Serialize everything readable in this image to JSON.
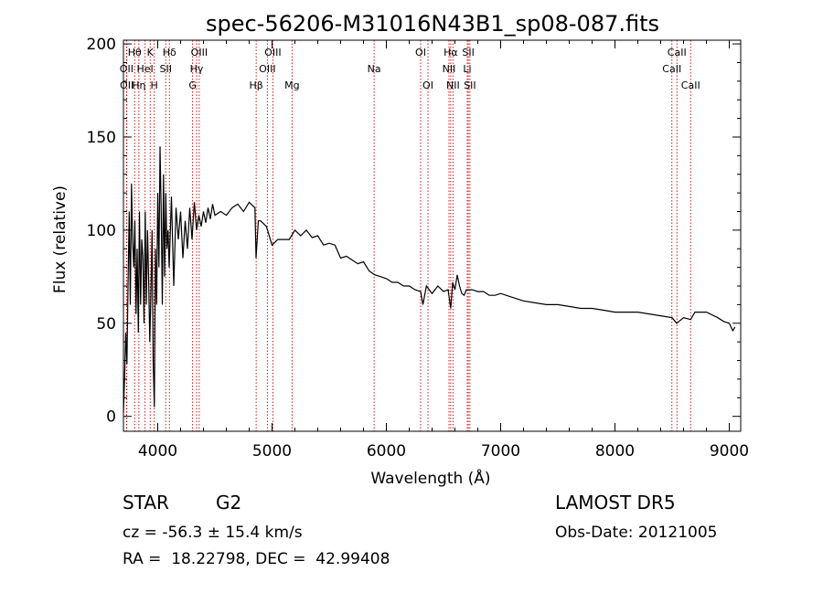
{
  "chart_data": {
    "type": "line",
    "title": "spec-56206-M31016N43B1_sp08-087.fits",
    "xlabel": "Wavelength (Å)",
    "ylabel": "Flux (relative)",
    "xlim": [
      3700,
      9100
    ],
    "ylim": [
      -8,
      202
    ],
    "xticks": [
      4000,
      5000,
      6000,
      7000,
      8000,
      9000
    ],
    "yticks": [
      0,
      50,
      100,
      150,
      200
    ],
    "grid": false,
    "line_color": "#000000",
    "marker_color": "#cc0000",
    "series": [
      {
        "x": [
          3700,
          3710,
          3720,
          3730,
          3740,
          3750,
          3760,
          3770,
          3780,
          3790,
          3800,
          3810,
          3820,
          3830,
          3840,
          3850,
          3860,
          3870,
          3880,
          3890,
          3900,
          3910,
          3920,
          3930,
          3940,
          3950,
          3960,
          3970,
          3980,
          3990,
          4000,
          4010,
          4020,
          4030,
          4040,
          4050,
          4060,
          4070,
          4080,
          4090,
          4100,
          4120,
          4140,
          4160,
          4180,
          4200,
          4220,
          4240,
          4260,
          4280,
          4300,
          4320,
          4340,
          4360,
          4380,
          4400,
          4420,
          4440,
          4460,
          4480,
          4500,
          4550,
          4600,
          4650,
          4700,
          4750,
          4800,
          4850,
          4860,
          4880,
          4900,
          4950,
          5000,
          5050,
          5100,
          5150,
          5200,
          5250,
          5300,
          5350,
          5400,
          5450,
          5500,
          5550,
          5600,
          5650,
          5700,
          5750,
          5800,
          5850,
          5900,
          5950,
          6000,
          6050,
          6100,
          6150,
          6200,
          6250,
          6300,
          6320,
          6350,
          6400,
          6450,
          6500,
          6540,
          6563,
          6580,
          6600,
          6620,
          6640,
          6660,
          6680,
          6700,
          6750,
          6800,
          6850,
          6900,
          6950,
          7000,
          7100,
          7200,
          7300,
          7400,
          7500,
          7600,
          7700,
          7800,
          7900,
          8000,
          8100,
          8200,
          8300,
          8400,
          8500,
          8540,
          8600,
          8662,
          8700,
          8800,
          8900,
          8950,
          9000,
          9030,
          9050
        ],
        "values": [
          2,
          22,
          45,
          28,
          70,
          110,
          60,
          125,
          95,
          80,
          105,
          55,
          90,
          45,
          110,
          60,
          95,
          85,
          50,
          110,
          60,
          100,
          75,
          40,
          65,
          100,
          30,
          5,
          90,
          60,
          120,
          80,
          145,
          110,
          60,
          130,
          75,
          120,
          90,
          100,
          80,
          118,
          70,
          112,
          95,
          110,
          85,
          105,
          90,
          112,
          95,
          115,
          100,
          108,
          102,
          110,
          104,
          112,
          106,
          114,
          108,
          110,
          108,
          112,
          114,
          110,
          115,
          112,
          85,
          105,
          105,
          102,
          92,
          95,
          95,
          95,
          100,
          97,
          100,
          96,
          97,
          92,
          93,
          92,
          85,
          86,
          84,
          82,
          83,
          78,
          76,
          75,
          74,
          72,
          72,
          70,
          70,
          68,
          67,
          60,
          70,
          66,
          70,
          67,
          68,
          58,
          72,
          68,
          76,
          70,
          66,
          65,
          68,
          68,
          67,
          67,
          65,
          65,
          66,
          64,
          62,
          61,
          60,
          60,
          59,
          58,
          58,
          57,
          56,
          56,
          56,
          55,
          54,
          53,
          50,
          53,
          52,
          56,
          56,
          53,
          51,
          50,
          46,
          48
        ]
      }
    ],
    "lines": [
      {
        "label": "Hθ",
        "wave": 3798,
        "row": 0
      },
      {
        "label": "K",
        "wave": 3934,
        "row": 0
      },
      {
        "label": "Hδ",
        "wave": 4102,
        "row": 0
      },
      {
        "label": "OIII",
        "wave": 4363,
        "row": 0
      },
      {
        "label": "OIII",
        "wave": 5007,
        "row": 0
      },
      {
        "label": "OI",
        "wave": 6300,
        "row": 0
      },
      {
        "label": "Hα",
        "wave": 6563,
        "row": 0
      },
      {
        "label": "SII",
        "wave": 6717,
        "row": 0
      },
      {
        "label": "CaII",
        "wave": 8542,
        "row": 0
      },
      {
        "label": "OII",
        "wave": 3727,
        "row": 1
      },
      {
        "label": "HeI",
        "wave": 3889,
        "row": 1
      },
      {
        "label": "SII",
        "wave": 4070,
        "row": 1
      },
      {
        "label": "Hγ",
        "wave": 4340,
        "row": 1
      },
      {
        "label": "OIII",
        "wave": 4959,
        "row": 1
      },
      {
        "label": "Na",
        "wave": 5893,
        "row": 1
      },
      {
        "label": "NII",
        "wave": 6548,
        "row": 1
      },
      {
        "label": "Li",
        "wave": 6708,
        "row": 1
      },
      {
        "label": "CaII",
        "wave": 8498,
        "row": 1
      },
      {
        "label": "OII",
        "wave": 3729,
        "row": 2
      },
      {
        "label": "Hη",
        "wave": 3835,
        "row": 2
      },
      {
        "label": "H",
        "wave": 3969,
        "row": 2
      },
      {
        "label": "G",
        "wave": 4305,
        "row": 2
      },
      {
        "label": "Hβ",
        "wave": 4861,
        "row": 2
      },
      {
        "label": "Mg",
        "wave": 5175,
        "row": 2
      },
      {
        "label": "OI",
        "wave": 6364,
        "row": 2
      },
      {
        "label": "NII",
        "wave": 6583,
        "row": 2
      },
      {
        "label": "SII",
        "wave": 6731,
        "row": 2
      },
      {
        "label": "CaII",
        "wave": 8662,
        "row": 2
      }
    ]
  },
  "info": {
    "class": "STAR",
    "subclass": "G2",
    "cz": "cz = -56.3 ± 15.4 km/s",
    "radec": "RA =  18.22798, DEC =  42.99408",
    "survey": "LAMOST DR5",
    "obs_date": "Obs-Date: 20121005"
  }
}
